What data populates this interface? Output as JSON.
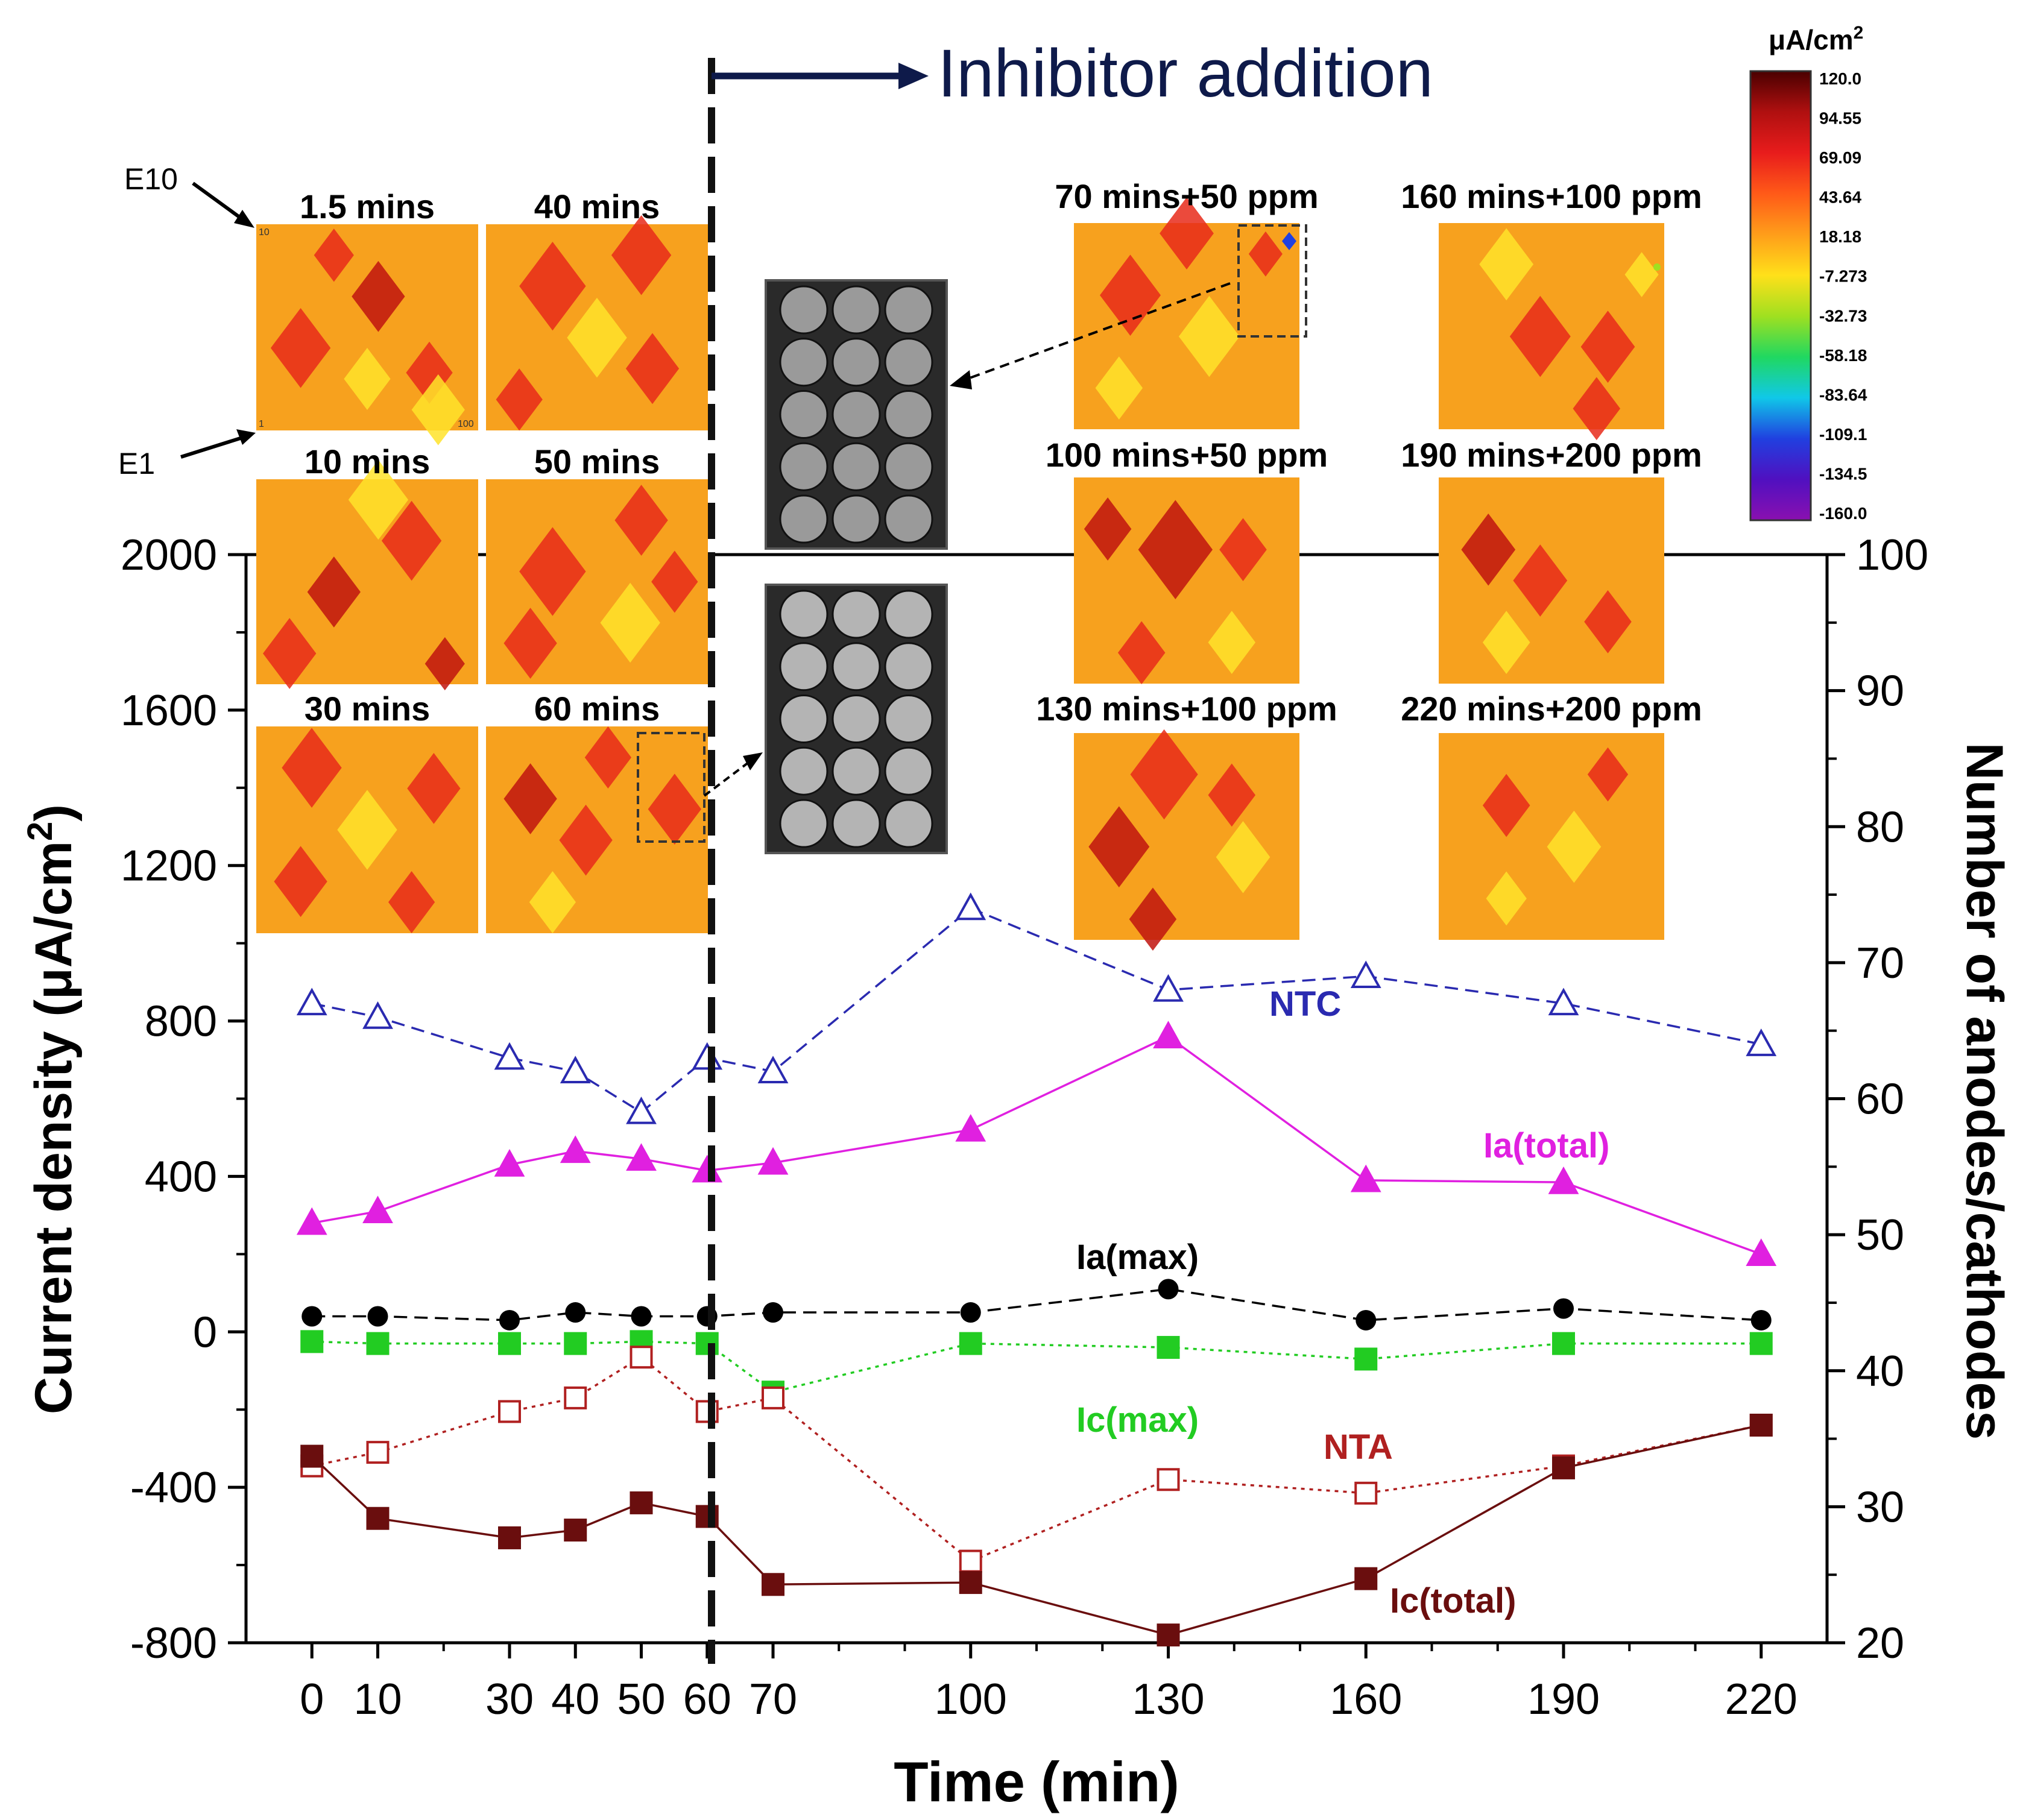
{
  "chart_data": {
    "type": "line",
    "annotation_inhibitor": "Inhibitor addition",
    "xlabel": "Time (min)",
    "ylabel_left": "Current density (μA/cm",
    "ylabel_left_sup": "2",
    "ylabel_left_close": ")",
    "ylabel_right": "Number of anodes/cathodes",
    "xlim": [
      -10,
      230
    ],
    "ylim_left": [
      -800,
      2000
    ],
    "ylim_right": [
      20,
      100
    ],
    "x_ticks": [
      0,
      10,
      30,
      40,
      50,
      60,
      70,
      100,
      130,
      160,
      190,
      220
    ],
    "x_tick_labels": [
      "0",
      "10",
      "30",
      "40",
      "50",
      "60",
      "70",
      "100",
      "130",
      "160",
      "190",
      "220"
    ],
    "y_left_ticks": [
      -800,
      -400,
      0,
      400,
      800,
      1200,
      1600,
      2000
    ],
    "y_left_tick_labels": [
      "-800",
      "-400",
      "0",
      "400",
      "800",
      "1200",
      "1600",
      "2000"
    ],
    "y_right_ticks": [
      20,
      30,
      40,
      50,
      60,
      70,
      80,
      90,
      100
    ],
    "y_right_tick_labels": [
      "20",
      "30",
      "40",
      "50",
      "60",
      "70",
      "80",
      "90",
      "100"
    ],
    "inhibitor_time": 60,
    "x": [
      0,
      10,
      30,
      40,
      50,
      60,
      70,
      100,
      130,
      160,
      190,
      220
    ],
    "series": [
      {
        "name": "NTC",
        "axis": "right",
        "color": "#2a2ab0",
        "marker": "triangle-open",
        "line": "dashed",
        "values": [
          67,
          66,
          63,
          62,
          59,
          63,
          62,
          74,
          68,
          69,
          67,
          64
        ]
      },
      {
        "name": "Ia(total)",
        "axis": "left",
        "color": "#e020e0",
        "marker": "triangle-filled",
        "line": "solid",
        "values": [
          280,
          310,
          430,
          465,
          445,
          415,
          435,
          520,
          760,
          390,
          385,
          200
        ]
      },
      {
        "name": "Ia(max)",
        "axis": "left",
        "color": "#000000",
        "marker": "circle-filled",
        "line": "dashed",
        "values": [
          40,
          40,
          30,
          50,
          40,
          40,
          50,
          50,
          110,
          30,
          60,
          30
        ]
      },
      {
        "name": "Ic(max)",
        "axis": "left",
        "color": "#22cc22",
        "marker": "square-filled",
        "line": "dotted",
        "values": [
          -25,
          -30,
          -30,
          -30,
          -25,
          -30,
          -155,
          -30,
          -40,
          -70,
          -30,
          -30
        ]
      },
      {
        "name": "NTA",
        "axis": "right",
        "color": "#b02020",
        "marker": "square-open",
        "line": "dotted",
        "values": [
          33,
          34,
          37,
          38,
          41,
          37,
          38,
          26,
          32,
          31,
          33,
          36
        ]
      },
      {
        "name": "Ic(total)",
        "axis": "left",
        "color": "#6a0e0e",
        "marker": "square-filled",
        "line": "solid",
        "values": [
          -320,
          -480,
          -530,
          -510,
          -440,
          -475,
          -650,
          -645,
          -780,
          -635,
          -350,
          -240
        ]
      }
    ],
    "series_labels": [
      {
        "series": "NTC",
        "text": "NTC"
      },
      {
        "series": "Ia(total)",
        "text": "Ia(total)"
      },
      {
        "series": "Ia(max)",
        "text": "Ia(max)"
      },
      {
        "series": "Ic(max)",
        "text": "Ic(max)"
      },
      {
        "series": "NTA",
        "text": "NTA"
      },
      {
        "series": "Ic(total)",
        "text": "Ic(total)"
      }
    ],
    "maps": [
      {
        "label": "1.5 mins",
        "corner_labels": [
          "10",
          "1",
          "100"
        ]
      },
      {
        "label": "40 mins"
      },
      {
        "label": "10 mins"
      },
      {
        "label": "50 mins"
      },
      {
        "label": "30 mins"
      },
      {
        "label": "60 mins"
      },
      {
        "label": "70 mins+50 ppm"
      },
      {
        "label": "160 mins+100 ppm"
      },
      {
        "label": "100 mins+50 ppm"
      },
      {
        "label": "190 mins+200 ppm"
      },
      {
        "label": "130 mins+100 ppm"
      },
      {
        "label": "220 mins+200 ppm"
      }
    ],
    "electrode_labels": [
      "E10",
      "E1"
    ],
    "colorbar": {
      "unit": "μA/cm",
      "unit_sup": "2",
      "ticks": [
        "120.0",
        "94.55",
        "69.09",
        "43.64",
        "18.18",
        "-7.273",
        "-32.73",
        "-58.18",
        "-83.64",
        "-109.1",
        "-134.5",
        "-160.0"
      ],
      "colors": [
        "#4a0000",
        "#b01010",
        "#e81c1c",
        "#ff5a18",
        "#ff9d1a",
        "#ffe01a",
        "#a0e020",
        "#20d860",
        "#10c8e8",
        "#2040e0",
        "#5010c0",
        "#8a10b0"
      ]
    },
    "map_colors": {
      "base": "#f7a11e",
      "hot": "#e82a1a",
      "dark": "#c0140f",
      "light": "#ffe32a"
    }
  }
}
